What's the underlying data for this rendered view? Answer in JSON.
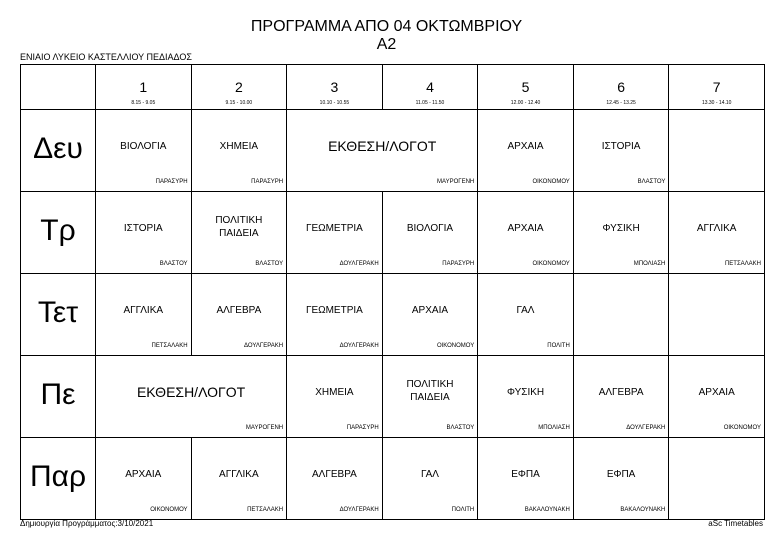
{
  "title": "ΠΡΟΓΡΑΜΜΑ ΑΠΟ 04 ΟΚΤΩΜΒΡΙΟΥ",
  "class_name": "Α2",
  "school": "ΕΝΙΑΙΟ ΛΥΚΕΙΟ ΚΑΣΤΕΛΛΙΟΥ ΠΕΔΙΑΔΟΣ",
  "periods": [
    {
      "num": "1",
      "time": "8.15 - 9.05"
    },
    {
      "num": "2",
      "time": "9.15 - 10.00"
    },
    {
      "num": "3",
      "time": "10.10 - 10.55"
    },
    {
      "num": "4",
      "time": "11.05 - 11.50"
    },
    {
      "num": "5",
      "time": "12.00 - 12.40"
    },
    {
      "num": "6",
      "time": "12.45 - 13.25"
    },
    {
      "num": "7",
      "time": "13.30 - 14.10"
    }
  ],
  "days": [
    {
      "name": "Δευ",
      "lessons": [
        {
          "subject": "ΒΙΟΛΟΓΙΑ",
          "teacher": "ΠΑΡΑΣΥΡΗ",
          "span": 1
        },
        {
          "subject": "ΧΗΜΕΙΑ",
          "teacher": "ΠΑΡΑΣΥΡΗ",
          "span": 1
        },
        {
          "subject": "ΕΚΘΕΣΗ/ΛΟΓΟΤ",
          "teacher": "ΜΑΥΡΟΓΕΝΗ",
          "span": 2
        },
        {
          "subject": "ΑΡΧΑΙΑ",
          "teacher": "ΟΙΚΟΝΟΜΟΥ",
          "span": 1
        },
        {
          "subject": "ΙΣΤΟΡΙΑ",
          "teacher": "ΒΛΑΣΤΟΥ",
          "span": 1
        },
        {
          "subject": "",
          "teacher": "",
          "span": 1
        }
      ]
    },
    {
      "name": "Τρ",
      "lessons": [
        {
          "subject": "ΙΣΤΟΡΙΑ",
          "teacher": "ΒΛΑΣΤΟΥ",
          "span": 1
        },
        {
          "subject": "ΠΟΛΙΤΙΚΗ ΠΑΙΔΕΙΑ",
          "teacher": "ΒΛΑΣΤΟΥ",
          "span": 1
        },
        {
          "subject": "ΓΕΩΜΕΤΡΙΑ",
          "teacher": "ΔΟΥΛΓΕΡΑΚΗ",
          "span": 1
        },
        {
          "subject": "ΒΙΟΛΟΓΙΑ",
          "teacher": "ΠΑΡΑΣΥΡΗ",
          "span": 1
        },
        {
          "subject": "ΑΡΧΑΙΑ",
          "teacher": "ΟΙΚΟΝΟΜΟΥ",
          "span": 1
        },
        {
          "subject": "ΦΥΣΙΚΗ",
          "teacher": "ΜΠΟΛΙΑΣΗ",
          "span": 1
        },
        {
          "subject": "ΑΓΓΛΙΚΑ",
          "teacher": "ΠΕΤΣΑΛΑΚΗ",
          "span": 1
        }
      ]
    },
    {
      "name": "Τετ",
      "lessons": [
        {
          "subject": "ΑΓΓΛΙΚΑ",
          "teacher": "ΠΕΤΣΑΛΑΚΗ",
          "span": 1
        },
        {
          "subject": "ΑΛΓΕΒΡΑ",
          "teacher": "ΔΟΥΛΓΕΡΑΚΗ",
          "span": 1
        },
        {
          "subject": "ΓΕΩΜΕΤΡΙΑ",
          "teacher": "ΔΟΥΛΓΕΡΑΚΗ",
          "span": 1
        },
        {
          "subject": "ΑΡΧΑΙΑ",
          "teacher": "ΟΙΚΟΝΟΜΟΥ",
          "span": 1
        },
        {
          "subject": "ΓΑΛ",
          "teacher": "ΠΟΛΙΤΗ",
          "span": 1
        },
        {
          "subject": "",
          "teacher": "",
          "span": 1
        },
        {
          "subject": "",
          "teacher": "",
          "span": 1
        }
      ]
    },
    {
      "name": "Πε",
      "lessons": [
        {
          "subject": "ΕΚΘΕΣΗ/ΛΟΓΟΤ",
          "teacher": "ΜΑΥΡΟΓΕΝΗ",
          "span": 2
        },
        {
          "subject": "ΧΗΜΕΙΑ",
          "teacher": "ΠΑΡΑΣΥΡΗ",
          "span": 1
        },
        {
          "subject": "ΠΟΛΙΤΙΚΗ ΠΑΙΔΕΙΑ",
          "teacher": "ΒΛΑΣΤΟΥ",
          "span": 1
        },
        {
          "subject": "ΦΥΣΙΚΗ",
          "teacher": "ΜΠΟΛΙΑΣΗ",
          "span": 1
        },
        {
          "subject": "ΑΛΓΕΒΡΑ",
          "teacher": "ΔΟΥΛΓΕΡΑΚΗ",
          "span": 1
        },
        {
          "subject": "ΑΡΧΑΙΑ",
          "teacher": "ΟΙΚΟΝΟΜΟΥ",
          "span": 1
        }
      ]
    },
    {
      "name": "Παρ",
      "lessons": [
        {
          "subject": "ΑΡΧΑΙΑ",
          "teacher": "ΟΙΚΟΝΟΜΟΥ",
          "span": 1
        },
        {
          "subject": "ΑΓΓΛΙΚΑ",
          "teacher": "ΠΕΤΣΑΛΑΚΗ",
          "span": 1
        },
        {
          "subject": "ΑΛΓΕΒΡΑ",
          "teacher": "ΔΟΥΛΓΕΡΑΚΗ",
          "span": 1
        },
        {
          "subject": "ΓΑΛ",
          "teacher": "ΠΟΛΙΤΗ",
          "span": 1
        },
        {
          "subject": "ΕΦΠΑ",
          "teacher": "ΒΑΚΑΛΟΥΝΑΚΗ",
          "span": 1
        },
        {
          "subject": "ΕΦΠΑ",
          "teacher": "ΒΑΚΑΛΟΥΝΑΚΗ",
          "span": 1
        },
        {
          "subject": "",
          "teacher": "",
          "span": 1
        }
      ]
    }
  ],
  "footer_left": "Δημιουργία Προγράμματος:3/10/2021",
  "footer_right": "aSc Timetables"
}
